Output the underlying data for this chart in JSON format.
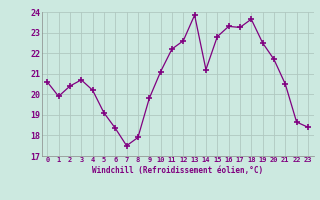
{
  "x": [
    0,
    1,
    2,
    3,
    4,
    5,
    6,
    7,
    8,
    9,
    10,
    11,
    12,
    13,
    14,
    15,
    16,
    17,
    18,
    19,
    20,
    21,
    22,
    23
  ],
  "y": [
    20.6,
    19.9,
    20.4,
    20.7,
    20.2,
    19.1,
    18.35,
    17.5,
    17.9,
    19.8,
    21.1,
    22.2,
    22.6,
    23.85,
    21.2,
    22.8,
    23.3,
    23.25,
    23.65,
    22.5,
    21.7,
    20.5,
    18.65,
    18.4
  ],
  "line_color": "#800080",
  "marker_color": "#800080",
  "bg_color": "#cce8d4",
  "grid_color": "#aaaaaa",
  "xlabel": "Windchill (Refroidissement éolien,°C)",
  "xlabel_color": "#800080",
  "tick_color": "#800080",
  "xlim": [
    -0.5,
    23.5
  ],
  "ylim": [
    17,
    24
  ],
  "yticks": [
    17,
    18,
    19,
    20,
    21,
    22,
    23,
    24
  ],
  "xticks": [
    0,
    1,
    2,
    3,
    4,
    5,
    6,
    7,
    8,
    9,
    10,
    11,
    12,
    13,
    14,
    15,
    16,
    17,
    18,
    19,
    20,
    21,
    22,
    23
  ]
}
